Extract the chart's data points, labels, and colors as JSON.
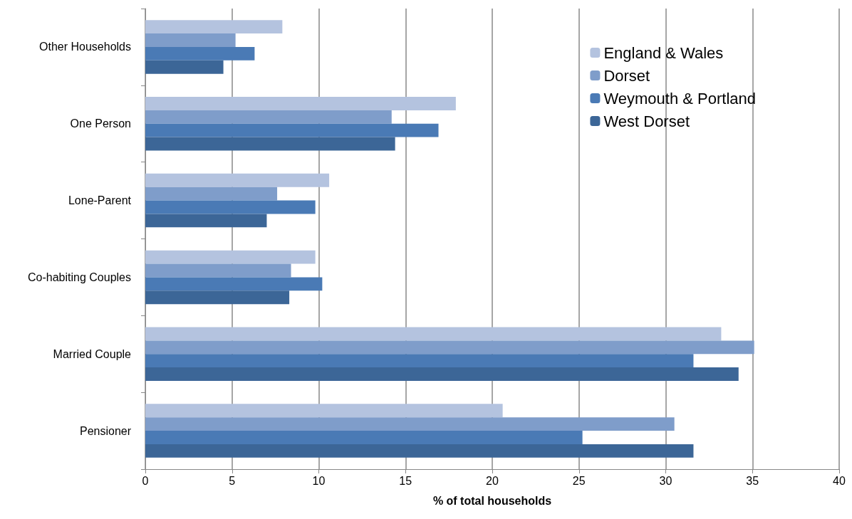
{
  "chart_data": {
    "type": "bar",
    "orientation": "horizontal",
    "xlabel": "% of total households",
    "categories": [
      "Other Households",
      "One Person",
      "Lone-Parent",
      "Co-habiting Couples",
      "Married Couple",
      "Pensioner"
    ],
    "series": [
      {
        "name": "England & Wales",
        "color": "#b4c3df",
        "values": [
          7.9,
          17.9,
          10.6,
          9.8,
          33.2,
          20.6
        ]
      },
      {
        "name": "Dorset",
        "color": "#7f9dca",
        "values": [
          5.2,
          14.2,
          7.6,
          8.4,
          35.1,
          30.5
        ]
      },
      {
        "name": "Weymouth & Portland",
        "color": "#4a7ab5",
        "values": [
          6.3,
          16.9,
          9.8,
          10.2,
          31.6,
          25.2
        ]
      },
      {
        "name": "West Dorset",
        "color": "#3c6697",
        "values": [
          4.5,
          14.4,
          7.0,
          8.3,
          34.2,
          31.6
        ]
      }
    ],
    "xlim": [
      0,
      40
    ],
    "xticks": [
      0,
      5,
      10,
      15,
      20,
      25,
      30,
      35,
      40
    ],
    "grid": "x",
    "legend": "top right"
  }
}
